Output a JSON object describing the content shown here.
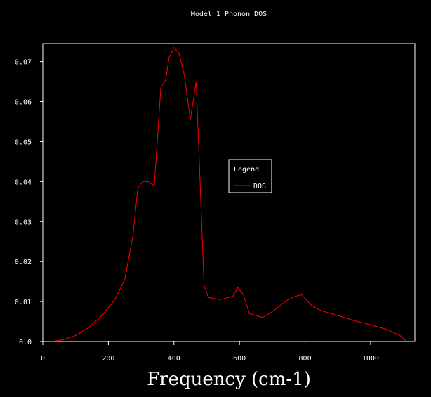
{
  "chart_data": {
    "type": "line",
    "title": "Model_1 Phonon DOS",
    "xlabel": "Frequency (cm-1)",
    "ylabel": "",
    "xlim": [
      0,
      1135
    ],
    "ylim": [
      0,
      0.0745
    ],
    "xticks": [
      0,
      200,
      400,
      600,
      800,
      1000
    ],
    "yticks": [
      0.0,
      0.01,
      0.02,
      0.03,
      0.04,
      0.05,
      0.06,
      0.07
    ],
    "ytick_labels": [
      "0.0",
      "0.01",
      "0.02",
      "0.03",
      "0.04",
      "0.05",
      "0.06",
      "0.07"
    ],
    "xtick_labels": [
      "0",
      "200",
      "400",
      "600",
      "800",
      "1000"
    ],
    "grid": false,
    "legend": {
      "title": "Legend",
      "position": "right-center"
    },
    "series": [
      {
        "name": "DOS",
        "color": "#ff0000",
        "points": [
          [
            25,
            0.0
          ],
          [
            60,
            0.0004
          ],
          [
            100,
            0.0015
          ],
          [
            140,
            0.0035
          ],
          [
            180,
            0.0065
          ],
          [
            220,
            0.0105
          ],
          [
            250,
            0.0155
          ],
          [
            275,
            0.0265
          ],
          [
            290,
            0.0385
          ],
          [
            305,
            0.04
          ],
          [
            320,
            0.04
          ],
          [
            340,
            0.039
          ],
          [
            360,
            0.0635
          ],
          [
            375,
            0.0655
          ],
          [
            385,
            0.071
          ],
          [
            400,
            0.0735
          ],
          [
            415,
            0.0722
          ],
          [
            432,
            0.0665
          ],
          [
            450,
            0.0555
          ],
          [
            468,
            0.065
          ],
          [
            482,
            0.035
          ],
          [
            492,
            0.014
          ],
          [
            505,
            0.011
          ],
          [
            540,
            0.0105
          ],
          [
            580,
            0.0113
          ],
          [
            595,
            0.0135
          ],
          [
            612,
            0.0117
          ],
          [
            630,
            0.007
          ],
          [
            670,
            0.006
          ],
          [
            700,
            0.0075
          ],
          [
            745,
            0.0103
          ],
          [
            770,
            0.0113
          ],
          [
            790,
            0.0117
          ],
          [
            820,
            0.009
          ],
          [
            850,
            0.0077
          ],
          [
            900,
            0.0065
          ],
          [
            950,
            0.0052
          ],
          [
            1000,
            0.0042
          ],
          [
            1050,
            0.003
          ],
          [
            1090,
            0.0015
          ],
          [
            1110,
            0.0
          ]
        ]
      }
    ]
  }
}
